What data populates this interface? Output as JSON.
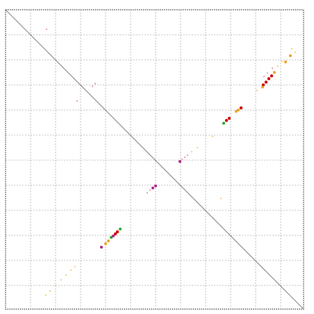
{
  "chart_data": {
    "type": "scatter",
    "xlim": [
      0,
      429
    ],
    "ylim": [
      430,
      0
    ],
    "xticks": [
      36,
      72,
      108,
      144,
      180,
      216,
      252,
      288,
      324,
      360,
      396
    ],
    "yticks": [
      36,
      72,
      108,
      144,
      180,
      216,
      252,
      288,
      324,
      360,
      396
    ],
    "grid": true,
    "diagonal": true,
    "series": [
      {
        "color": "#cc0000",
        "size": 2.2,
        "x": [
          318,
          322,
          158,
          161,
          375,
          379,
          383,
          371,
          339
        ],
        "values": [
          159,
          156,
          322,
          319,
          104,
          99,
          95,
          108,
          141
        ]
      },
      {
        "color": "#22aa22",
        "size": 2,
        "x": [
          314,
          165,
          152
        ],
        "values": [
          163,
          315,
          327
        ]
      },
      {
        "color": "#f0a020",
        "size": 2,
        "x": [
          332,
          335,
          144,
          148,
          387,
          403,
          410,
          370
        ],
        "values": [
          146,
          144,
          336,
          332,
          90,
          75,
          66,
          111
        ]
      },
      {
        "color": "#aa2288",
        "size": 2,
        "x": [
          138,
          251,
          216,
          212,
          155
        ],
        "values": [
          341,
          218,
          253,
          256,
          325
        ]
      },
      {
        "color": "#e080a0",
        "size": 1,
        "x": [
          254,
          258,
          262,
          208,
          204,
          372,
          377,
          384,
          129,
          125,
          103,
          59
        ],
        "values": [
          215,
          212,
          209,
          259,
          263,
          96,
          91,
          84,
          106,
          110,
          131,
          28
        ]
      },
      {
        "color": "#f0c060",
        "size": 1,
        "x": [
          58,
          64,
          72,
          80,
          87,
          94,
          100,
          268,
          276,
          298,
          392,
          398,
          412,
          417,
          310,
          362
        ],
        "values": [
          410,
          404,
          396,
          388,
          381,
          374,
          369,
          204,
          198,
          182,
          81,
          74,
          56,
          61,
          271,
          116
        ]
      }
    ]
  }
}
